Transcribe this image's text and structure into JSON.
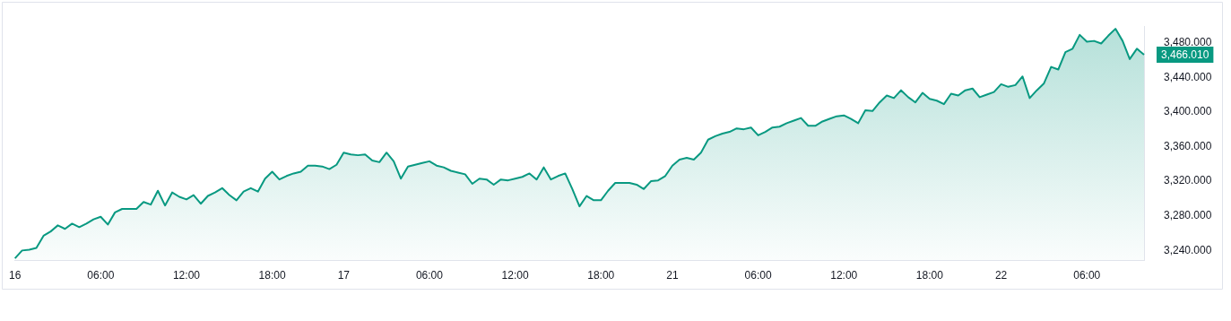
{
  "chart_data": {
    "type": "area",
    "legend": false,
    "grid": false,
    "marker": "none",
    "line_style": "solid",
    "ylim": [
      3229,
      3499
    ],
    "yticks": [
      {
        "value": 3240,
        "label": "3,240.000"
      },
      {
        "value": 3280,
        "label": "3,280.000"
      },
      {
        "value": 3320,
        "label": "3,320.000"
      },
      {
        "value": 3360,
        "label": "3,360.000"
      },
      {
        "value": 3400,
        "label": "3,400.000"
      },
      {
        "value": 3440,
        "label": "3,440.000"
      },
      {
        "value": 3480,
        "label": "3,480.000"
      }
    ],
    "annotations": [
      "3,466.010"
    ],
    "categories": [
      "16",
      null,
      null,
      null,
      null,
      null,
      null,
      null,
      null,
      null,
      null,
      null,
      "06:00",
      null,
      null,
      null,
      null,
      null,
      null,
      null,
      null,
      null,
      null,
      null,
      "12:00",
      null,
      null,
      null,
      null,
      null,
      null,
      null,
      null,
      null,
      null,
      null,
      "18:00",
      null,
      null,
      null,
      null,
      null,
      null,
      null,
      null,
      null,
      "17",
      null,
      null,
      null,
      null,
      null,
      null,
      null,
      null,
      null,
      null,
      null,
      "06:00",
      null,
      null,
      null,
      null,
      null,
      null,
      null,
      null,
      null,
      null,
      null,
      "12:00",
      null,
      null,
      null,
      null,
      null,
      null,
      null,
      null,
      null,
      null,
      null,
      "18:00",
      null,
      null,
      null,
      null,
      null,
      null,
      null,
      null,
      null,
      "21",
      null,
      null,
      null,
      null,
      null,
      null,
      null,
      null,
      null,
      null,
      null,
      "06:00",
      null,
      null,
      null,
      null,
      null,
      null,
      null,
      null,
      null,
      null,
      null,
      "12:00",
      null,
      null,
      null,
      null,
      null,
      null,
      null,
      null,
      null,
      null,
      null,
      "18:00",
      null,
      null,
      null,
      null,
      null,
      null,
      null,
      null,
      null,
      "22",
      null,
      null,
      null,
      null,
      null,
      null,
      null,
      null,
      null,
      null,
      null,
      "06:00",
      null,
      null,
      null,
      null,
      null,
      null,
      null,
      null
    ],
    "series": [
      {
        "color": "#089981",
        "values": [
          3231,
          3240,
          3241,
          3243,
          3257,
          3262,
          3269,
          3265,
          3271,
          3267,
          3271,
          3276,
          3279,
          3270,
          3284,
          3288,
          3288,
          3288,
          3296,
          3293,
          3309,
          3292,
          3307,
          3302,
          3299,
          3304,
          3294,
          3303,
          3307,
          3312,
          3304,
          3298,
          3308,
          3312,
          3308,
          3323,
          3331,
          3322,
          3326,
          3329,
          3331,
          3338,
          3338,
          3337,
          3334,
          3339,
          3353,
          3351,
          3350,
          3351,
          3344,
          3342,
          3353,
          3343,
          3323,
          3337,
          3339,
          3341,
          3343,
          3338,
          3336,
          3332,
          3330,
          3328,
          3317,
          3323,
          3322,
          3316,
          3322,
          3321,
          3323,
          3325,
          3329,
          3322,
          3336,
          3322,
          3326,
          3329,
          3311,
          3291,
          3303,
          3298,
          3298,
          3309,
          3318,
          3318,
          3318,
          3316,
          3311,
          3320,
          3321,
          3326,
          3338,
          3345,
          3347,
          3345,
          3353,
          3368,
          3372,
          3375,
          3377,
          3381,
          3380,
          3382,
          3373,
          3377,
          3382,
          3383,
          3387,
          3390,
          3393,
          3384,
          3384,
          3389,
          3392,
          3395,
          3396,
          3392,
          3387,
          3402,
          3401,
          3411,
          3419,
          3416,
          3425,
          3417,
          3411,
          3422,
          3415,
          3413,
          3409,
          3421,
          3419,
          3425,
          3427,
          3417,
          3420,
          3423,
          3432,
          3429,
          3431,
          3441,
          3416,
          3425,
          3433,
          3452,
          3449,
          3469,
          3473,
          3489,
          3481,
          3482,
          3479,
          3488,
          3496,
          3482,
          3461,
          3473,
          3466
        ]
      }
    ]
  }
}
